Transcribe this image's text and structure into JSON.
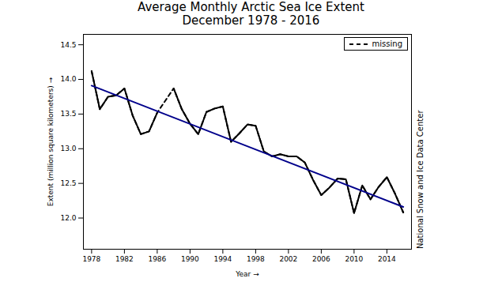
{
  "chart_data": {
    "type": "line",
    "title": "Average Monthly Arctic Sea Ice Extent",
    "subtitle": "December 1978 - 2016",
    "x_label": "Year",
    "y_label": "Extent (million square kilometers)",
    "source": "National Snow and Ice Data Center",
    "x": [
      1978,
      1979,
      1980,
      1981,
      1982,
      1983,
      1984,
      1985,
      1986,
      1987,
      1988,
      1989,
      1990,
      1991,
      1992,
      1993,
      1994,
      1995,
      1996,
      1997,
      1998,
      1999,
      2000,
      2001,
      2002,
      2003,
      2004,
      2005,
      2006,
      2007,
      2008,
      2009,
      2010,
      2011,
      2012,
      2013,
      2014,
      2015,
      2016
    ],
    "values": [
      14.12,
      13.57,
      13.75,
      13.77,
      13.87,
      13.48,
      13.21,
      13.25,
      13.52,
      null,
      13.87,
      13.57,
      13.36,
      13.21,
      13.53,
      13.58,
      13.61,
      13.1,
      13.22,
      13.35,
      13.33,
      12.96,
      12.89,
      12.92,
      12.89,
      12.89,
      12.8,
      12.55,
      12.33,
      12.44,
      12.57,
      12.56,
      12.07,
      12.47,
      12.27,
      12.45,
      12.59,
      12.35,
      12.08
    ],
    "color": "#000000",
    "trend": {
      "x": [
        1978,
        2016
      ],
      "values": [
        13.91,
        12.16
      ],
      "color": "#00008b"
    },
    "missing": {
      "name": "missing",
      "color": "#000000",
      "line_style": "dashed"
    },
    "legend": "upper right",
    "xlim": [
      1977,
      2017
    ],
    "xticks": [
      1978,
      1982,
      1986,
      1990,
      1994,
      1998,
      2002,
      2006,
      2010,
      2014
    ],
    "ylim": [
      11.55,
      14.65
    ],
    "yticks": [
      {
        "value": 12,
        "label": "12.0"
      },
      {
        "value": 12.5,
        "label": "12.5"
      },
      {
        "value": 13,
        "label": "13.0"
      },
      {
        "value": 13.5,
        "label": "13.5"
      },
      {
        "value": 14,
        "label": "14.0"
      },
      {
        "value": 14.5,
        "label": "14.5"
      }
    ],
    "grid": false
  }
}
